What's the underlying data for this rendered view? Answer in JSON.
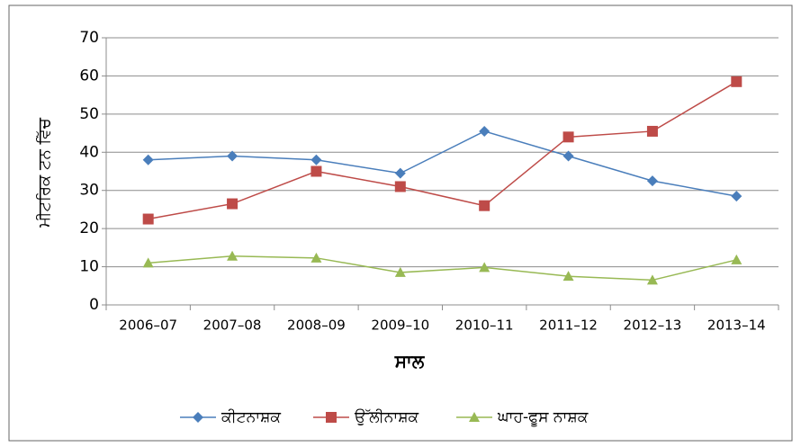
{
  "chart_data": {
    "type": "line",
    "xlabel": "ਸਾਲ",
    "ylabel": "ਮੀਟਰਿਕ ਟਨ ਵਿੱਚ",
    "categories": [
      "2006–07",
      "2007–08",
      "2008–09",
      "2009–10",
      "2010–11",
      "2011–12",
      "2012–13",
      "2013–14"
    ],
    "series": [
      {
        "name": "ਕੀਟਨਾਸ਼ਕ",
        "color": "#4a7ebb",
        "marker": "diamond",
        "values": [
          38,
          39,
          38,
          34.5,
          45.5,
          39,
          32.5,
          28.5
        ]
      },
      {
        "name": "ਉੱਲੀਨਾਸ਼ਕ",
        "color": "#be4b48",
        "marker": "square",
        "values": [
          22.5,
          26.5,
          35,
          31,
          26,
          44,
          45.5,
          58.5
        ]
      },
      {
        "name": "ਘਾਹ-ਫੂਸ ਨਾਸ਼ਕ",
        "color": "#98b954",
        "marker": "triangle",
        "values": [
          11,
          12.8,
          12.3,
          8.5,
          9.8,
          7.5,
          6.5,
          11.8
        ]
      }
    ],
    "ylim": [
      0,
      70
    ],
    "yticks": [
      0,
      10,
      20,
      30,
      40,
      50,
      60,
      70
    ],
    "grid": true,
    "legend": "bottom"
  }
}
